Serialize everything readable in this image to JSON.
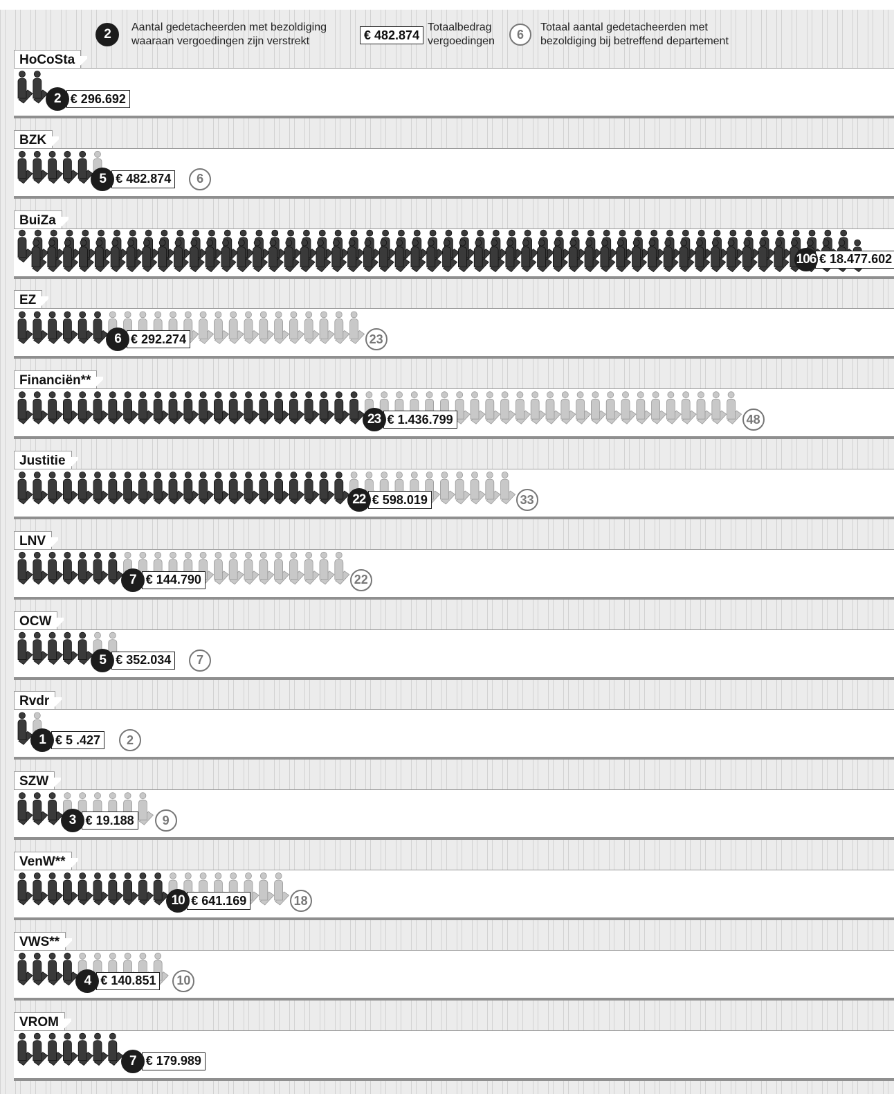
{
  "legend": {
    "badge_example": "2",
    "badge_text": "Aantal gedetacheerden met bezoldiging\nwaaraan vergoedingen zijn verstrekt",
    "amount_example": "€ 482.874",
    "amount_text": "Totaalbedrag\nvergoedingen",
    "total_example": "6",
    "total_text": "Totaal aantal gedetacheerden met\nbezoldiging bij betreffend departement"
  },
  "colors": {
    "paid": "#3a3a3a",
    "unpaid": "#c8c8c8",
    "badge": "#1c1c1c",
    "total_ring": "#777777"
  },
  "chart_data": {
    "type": "pictogram",
    "categories": [
      "HoCoSta",
      "BZK",
      "BuiZa",
      "EZ",
      "Financiën**",
      "Justitie",
      "LNV",
      "OCW",
      "Rvdr",
      "SZW",
      "VenW**",
      "VWS**",
      "VROM"
    ],
    "series": [
      {
        "name": "Aantal gedetacheerden met bezoldiging waaraan vergoedingen zijn verstrekt",
        "values": [
          2,
          5,
          106,
          6,
          23,
          22,
          7,
          5,
          1,
          3,
          10,
          4,
          7
        ]
      },
      {
        "name": "Totaal aantal gedetacheerden met bezoldiging bij betreffend departement",
        "values": [
          null,
          6,
          null,
          23,
          48,
          33,
          22,
          7,
          2,
          9,
          18,
          10,
          null
        ]
      }
    ],
    "amounts": [
      "€ 296.692",
      "€ 482.874",
      "€ 18.477.602",
      "€ 292.274",
      "€ 1.436.799",
      "€ 598.019",
      "€ 144.790",
      "€ 352.034",
      "€ 5 .427",
      "€ 19.188",
      "€ 641.169",
      "€ 140.851",
      "€ 179.989"
    ]
  }
}
